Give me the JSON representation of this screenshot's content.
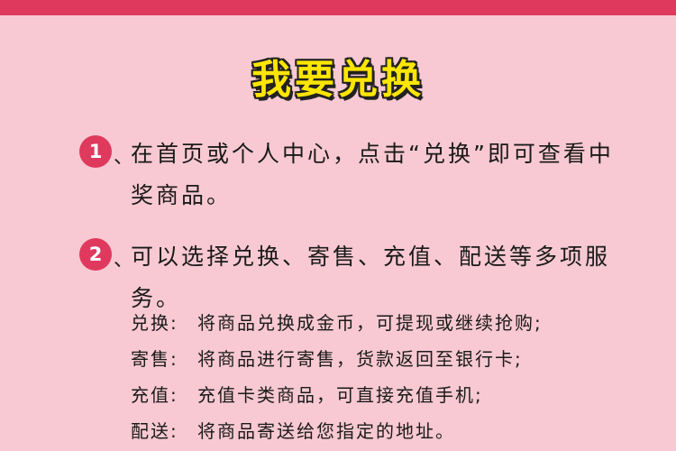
{
  "title": "我要兑换",
  "steps": [
    {
      "number": "1",
      "separator": "、",
      "text": "在首页或个人中心，点击“兑换”即可查看中奖商品。"
    },
    {
      "number": "2",
      "separator": "、",
      "text": "可以选择兑换、寄售、充值、配送等多项服务。"
    }
  ],
  "details": [
    {
      "label": "兑换:",
      "text": "将商品兑换成金币，可提现或继续抢购;"
    },
    {
      "label": "寄售:",
      "text": "将商品进行寄售，货款返回至银行卡;"
    },
    {
      "label": "充值:",
      "text": "充值卡类商品，可直接充值手机;"
    },
    {
      "label": "配送:",
      "text": "将商品寄送给您指定的地址。"
    }
  ],
  "colors": {
    "background": "#f8c9d3",
    "accent": "#df3a5e",
    "title": "#ffe600"
  }
}
